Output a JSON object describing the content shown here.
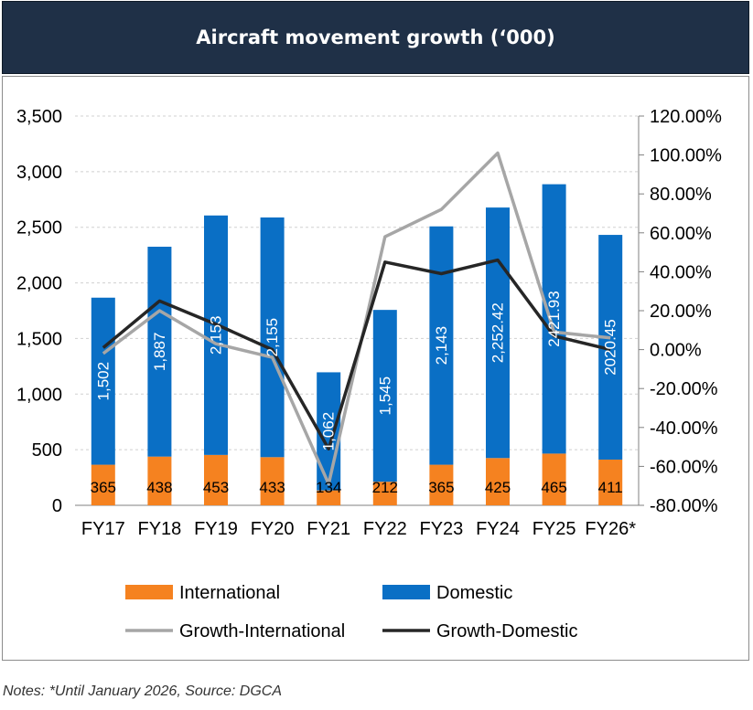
{
  "title": "Aircraft movement growth (‘000)",
  "notes": "Notes: *Until January 2026, Source: DGCA",
  "colors": {
    "title_bg": "#1f3047",
    "international": "#f58220",
    "domestic": "#0a6fc5",
    "growth_international": "#a6a6a6",
    "growth_domestic": "#262626"
  },
  "chart_data": {
    "type": "bar",
    "stacked": true,
    "categories": [
      "FY17",
      "FY18",
      "FY19",
      "FY20",
      "FY21",
      "FY22",
      "FY23",
      "FY24",
      "FY25",
      "FY26*"
    ],
    "bar_series": [
      {
        "name": "International",
        "values": [
          365,
          438,
          453,
          433,
          134,
          212,
          365,
          425,
          465,
          411
        ],
        "labels": [
          "365",
          "438",
          "453",
          "433",
          "134",
          "212",
          "365",
          "425",
          "465",
          "411"
        ]
      },
      {
        "name": "Domestic",
        "values": [
          1502,
          1887,
          2153,
          2155,
          1062,
          1545,
          2143,
          2252.42,
          2421.93,
          2020.45
        ],
        "labels": [
          "1,502",
          "1,887",
          "2,153",
          "2,155",
          "1,062",
          "1,545",
          "2,143",
          "2,252.42",
          "2421.93",
          "2020.45"
        ]
      }
    ],
    "line_series": [
      {
        "name": "Growth-International",
        "axis": "right",
        "values": [
          -2,
          20,
          3,
          -4,
          -69,
          58,
          72,
          101,
          9,
          6
        ]
      },
      {
        "name": "Growth-Domestic",
        "axis": "right",
        "values": [
          1,
          25,
          13,
          0,
          -51,
          45,
          39,
          46,
          7,
          0
        ]
      }
    ],
    "y_left": {
      "min": 0,
      "max": 3500,
      "ticks": [
        0,
        500,
        1000,
        1500,
        2000,
        2500,
        3000,
        3500
      ],
      "tick_labels": [
        "0",
        "500",
        "1,000",
        "1,500",
        "2,000",
        "2,500",
        "3,000",
        "3,500"
      ]
    },
    "y_right": {
      "min": -80,
      "max": 120,
      "ticks": [
        -80,
        -60,
        -40,
        -20,
        0,
        20,
        40,
        60,
        80,
        100,
        120
      ],
      "tick_labels": [
        "-80.00%",
        "-60.00%",
        "-40.00%",
        "-20.00%",
        "0.00%",
        "20.00%",
        "40.00%",
        "60.00%",
        "80.00%",
        "100.00%",
        "120.00%"
      ]
    },
    "grid": true,
    "legend_position": "bottom"
  }
}
